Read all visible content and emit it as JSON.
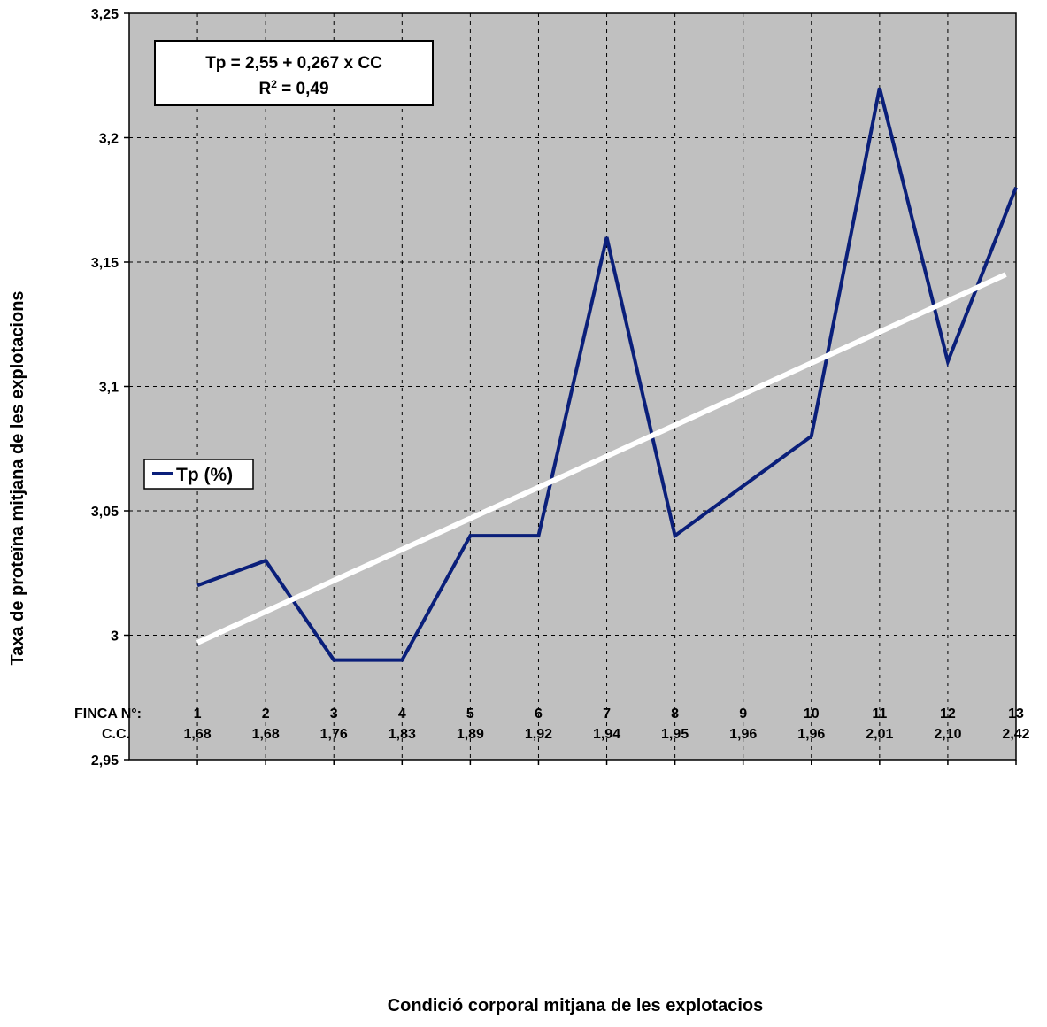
{
  "chart_data": {
    "type": "line",
    "ylabel": "Taxa de proteïna mitjana de les explotacions",
    "xlabel": "Condició corporal mitjana de les explotacios",
    "row_labels": [
      "FINCA N°:",
      "C.C."
    ],
    "categories": [
      "1",
      "2",
      "3",
      "4",
      "5",
      "6",
      "7",
      "8",
      "9",
      "10",
      "11",
      "12",
      "13"
    ],
    "cc_values": [
      "1,68",
      "1,68",
      "1,76",
      "1,83",
      "1,89",
      "1,92",
      "1,94",
      "1,95",
      "1,96",
      "1,96",
      "2,01",
      "2,10",
      "2,42"
    ],
    "ylim": [
      2.95,
      3.25
    ],
    "yticks": [
      2.95,
      3.0,
      3.05,
      3.1,
      3.15,
      3.2,
      3.25
    ],
    "ytick_labels": [
      "2,95",
      "3",
      "3,05",
      "3,1",
      "3,15",
      "3,2",
      "3,25"
    ],
    "grid": true,
    "legend_position": "left-middle",
    "series": [
      {
        "name": "Tp (%)",
        "color": "#0a1f7a",
        "values": [
          3.02,
          3.03,
          2.99,
          2.99,
          3.04,
          3.04,
          3.16,
          3.04,
          3.06,
          3.08,
          3.22,
          3.11,
          3.18
        ]
      }
    ],
    "trendline": {
      "color": "#ffffff",
      "from_category": 1,
      "to_category": 12.85,
      "start_value": 2.997,
      "end_value": 3.145
    },
    "annotation": {
      "line1": "Tp = 2,55 + 0,267 x CC",
      "line2_prefix": "R",
      "line2_sup": "2",
      "line2_suffix": " = 0,49"
    },
    "plot_background": "#c0c0c0"
  }
}
